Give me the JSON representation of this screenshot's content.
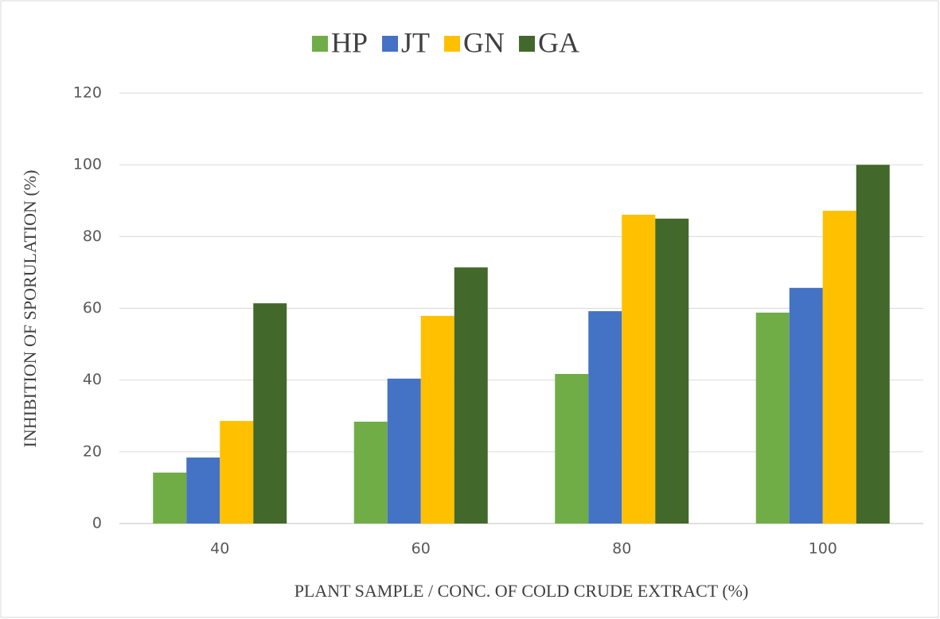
{
  "chart_data": {
    "type": "bar",
    "categories": [
      "40",
      "60",
      "80",
      "100"
    ],
    "series": [
      {
        "name": "HP",
        "color": "#70ad47",
        "values": [
          14.2,
          28.4,
          41.7,
          58.8
        ]
      },
      {
        "name": "JT",
        "color": "#4472c4",
        "values": [
          18.4,
          40.4,
          59.2,
          65.7
        ]
      },
      {
        "name": "GN",
        "color": "#ffc000",
        "values": [
          28.6,
          57.9,
          86.1,
          87.2
        ]
      },
      {
        "name": "GA",
        "color": "#43682b",
        "values": [
          61.4,
          71.4,
          85.0,
          100
        ]
      }
    ],
    "xlabel": "PLANT SAMPLE / CONC. OF COLD CRUDE EXTRACT (%)",
    "ylabel": "INHIBITION OF SPORULATION (%)",
    "ylim": [
      0,
      120
    ],
    "yticks": [
      0,
      20,
      40,
      60,
      80,
      100,
      120
    ],
    "grid": true,
    "legend": "top"
  }
}
